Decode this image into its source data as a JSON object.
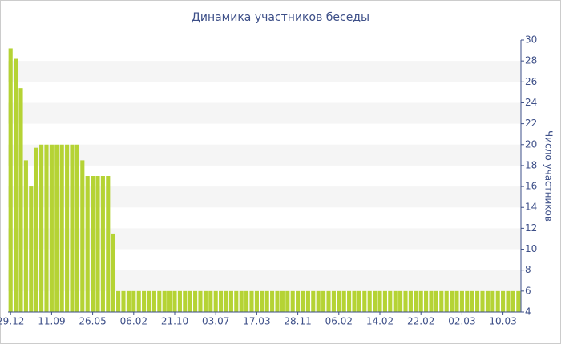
{
  "chart_data": {
    "type": "bar",
    "title": "Динамика участников беседы",
    "y_axis_label": "Число участников",
    "color": "#b5d334",
    "grid": true,
    "ylim": [
      4,
      30
    ],
    "yticks": [
      4,
      6,
      8,
      10,
      12,
      14,
      16,
      18,
      20,
      22,
      24,
      26,
      28,
      30
    ],
    "categories": [
      "29.12",
      null,
      null,
      null,
      null,
      null,
      null,
      null,
      "11.09",
      null,
      null,
      null,
      null,
      null,
      null,
      null,
      "26.05",
      null,
      null,
      null,
      null,
      null,
      null,
      null,
      "06.02",
      null,
      null,
      null,
      null,
      null,
      null,
      null,
      "21.10",
      null,
      null,
      null,
      null,
      null,
      null,
      null,
      "03.07",
      null,
      null,
      null,
      null,
      null,
      null,
      null,
      "17.03",
      null,
      null,
      null,
      null,
      null,
      null,
      null,
      "28.11",
      null,
      null,
      null,
      null,
      null,
      null,
      null,
      "06.02",
      null,
      null,
      null,
      null,
      null,
      null,
      null,
      "14.02",
      null,
      null,
      null,
      null,
      null,
      null,
      null,
      "22.02",
      null,
      null,
      null,
      null,
      null,
      null,
      null,
      "02.03",
      null,
      null,
      null,
      null,
      null,
      null,
      null,
      "10.03",
      null,
      null,
      null
    ],
    "values": [
      29.2,
      28.2,
      25.4,
      18.5,
      16,
      19.7,
      20,
      20,
      20,
      20,
      20,
      20,
      20,
      20,
      18.5,
      17,
      17,
      17,
      17,
      17,
      11.5,
      6,
      6,
      6,
      6,
      6,
      6,
      6,
      6,
      6,
      6,
      6,
      6,
      6,
      6,
      6,
      6,
      6,
      6,
      6,
      6,
      6,
      6,
      6,
      6,
      6,
      6,
      6,
      6,
      6,
      6,
      6,
      6,
      6,
      6,
      6,
      6,
      6,
      6,
      6,
      6,
      6,
      6,
      6,
      6,
      6,
      6,
      6,
      6,
      6,
      6,
      6,
      6,
      6,
      6,
      6,
      6,
      6,
      6,
      6,
      6,
      6,
      6,
      6,
      6,
      6,
      6,
      6,
      6,
      6,
      6,
      6,
      6,
      6,
      6,
      6,
      6,
      6,
      6,
      6
    ]
  }
}
